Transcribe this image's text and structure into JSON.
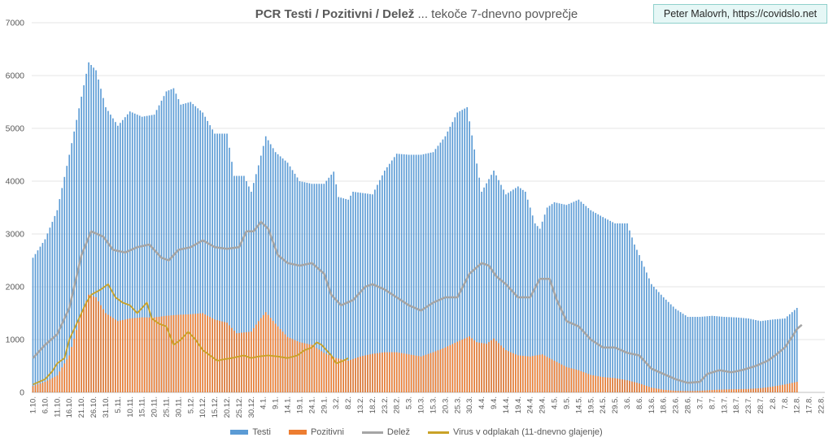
{
  "chart_data": {
    "type": "bar",
    "title_bold": "PCR Testi / Pozitivni / Delež",
    "title_rest": " ... tekoče 7-dnevno povprečje",
    "credit": "Peter Malovrh, https://covidslo.net",
    "ylim": [
      0,
      7000
    ],
    "y_ticks": [
      0,
      1000,
      2000,
      3000,
      4000,
      5000,
      6000,
      7000
    ],
    "x_start": "2020-10-01",
    "x_end": "2021-08-24",
    "x_tick_labels": [
      "1.10.",
      "6.10.",
      "11.10.",
      "16.10.",
      "21.10.",
      "26.10.",
      "31.10.",
      "5.11.",
      "10.11.",
      "15.11.",
      "20.11.",
      "25.11.",
      "30.11.",
      "5.12.",
      "10.12.",
      "15.12.",
      "20.12.",
      "25.12.",
      "30.12.",
      "4.1.",
      "9.1.",
      "14.1.",
      "19.1.",
      "24.1.",
      "29.1.",
      "3.2.",
      "8.2.",
      "13.2.",
      "18.2.",
      "23.2.",
      "28.2.",
      "5.3.",
      "10.3.",
      "15.3.",
      "20.3.",
      "25.3.",
      "30.3.",
      "4.4.",
      "9.4.",
      "14.4.",
      "19.4.",
      "24.4.",
      "29.4.",
      "4.5.",
      "9.5.",
      "14.5.",
      "19.5.",
      "24.5.",
      "29.5.",
      "3.6.",
      "8.6.",
      "13.6.",
      "18.6.",
      "23.6.",
      "28.6.",
      "3.7.",
      "8.7.",
      "13.7.",
      "18.7.",
      "23.7.",
      "28.7.",
      "2.8.",
      "7.8.",
      "12.8.",
      "17.8.",
      "22.8."
    ],
    "series": [
      {
        "name": "Testi",
        "kind": "bar",
        "color": "#5b9bd5",
        "points": [
          [
            "2020-10-01",
            2550
          ],
          [
            "2020-10-06",
            2900
          ],
          [
            "2020-10-11",
            3450
          ],
          [
            "2020-10-16",
            4500
          ],
          [
            "2020-10-21",
            5600
          ],
          [
            "2020-10-24",
            6250
          ],
          [
            "2020-10-27",
            6100
          ],
          [
            "2020-10-31",
            5400
          ],
          [
            "2020-11-05",
            5050
          ],
          [
            "2020-11-10",
            5320
          ],
          [
            "2020-11-15",
            5220
          ],
          [
            "2020-11-20",
            5260
          ],
          [
            "2020-11-25",
            5700
          ],
          [
            "2020-11-28",
            5760
          ],
          [
            "2020-12-01",
            5450
          ],
          [
            "2020-12-05",
            5500
          ],
          [
            "2020-12-10",
            5300
          ],
          [
            "2020-12-15",
            4900
          ],
          [
            "2020-12-20",
            4900
          ],
          [
            "2020-12-23",
            4100
          ],
          [
            "2020-12-27",
            4100
          ],
          [
            "2020-12-30",
            3800
          ],
          [
            "2021-01-02",
            4300
          ],
          [
            "2021-01-05",
            4850
          ],
          [
            "2021-01-09",
            4550
          ],
          [
            "2021-01-14",
            4350
          ],
          [
            "2021-01-19",
            4000
          ],
          [
            "2021-01-24",
            3950
          ],
          [
            "2021-01-29",
            3950
          ],
          [
            "2021-02-02",
            4180
          ],
          [
            "2021-02-04",
            3700
          ],
          [
            "2021-02-08",
            3650
          ],
          [
            "2021-02-10",
            3800
          ],
          [
            "2021-02-18",
            3750
          ],
          [
            "2021-02-23",
            4200
          ],
          [
            "2021-02-28",
            4520
          ],
          [
            "2021-03-05",
            4500
          ],
          [
            "2021-03-10",
            4500
          ],
          [
            "2021-03-15",
            4550
          ],
          [
            "2021-03-20",
            4850
          ],
          [
            "2021-03-25",
            5300
          ],
          [
            "2021-03-29",
            5400
          ],
          [
            "2021-04-01",
            4600
          ],
          [
            "2021-04-04",
            3800
          ],
          [
            "2021-04-09",
            4200
          ],
          [
            "2021-04-14",
            3750
          ],
          [
            "2021-04-19",
            3900
          ],
          [
            "2021-04-22",
            3800
          ],
          [
            "2021-04-26",
            3200
          ],
          [
            "2021-04-28",
            3100
          ],
          [
            "2021-05-01",
            3500
          ],
          [
            "2021-05-04",
            3600
          ],
          [
            "2021-05-09",
            3550
          ],
          [
            "2021-05-14",
            3650
          ],
          [
            "2021-05-19",
            3450
          ],
          [
            "2021-05-24",
            3320
          ],
          [
            "2021-05-29",
            3200
          ],
          [
            "2021-06-03",
            3200
          ],
          [
            "2021-06-06",
            2800
          ],
          [
            "2021-06-08",
            2600
          ],
          [
            "2021-06-13",
            2050
          ],
          [
            "2021-06-18",
            1800
          ],
          [
            "2021-06-23",
            1580
          ],
          [
            "2021-06-28",
            1430
          ],
          [
            "2021-07-03",
            1430
          ],
          [
            "2021-07-08",
            1450
          ],
          [
            "2021-07-13",
            1430
          ],
          [
            "2021-07-18",
            1420
          ],
          [
            "2021-07-23",
            1400
          ],
          [
            "2021-07-28",
            1350
          ],
          [
            "2021-08-02",
            1380
          ],
          [
            "2021-08-07",
            1400
          ],
          [
            "2021-08-12",
            1600
          ]
        ]
      },
      {
        "name": "Pozitivni",
        "kind": "bar",
        "color": "#ed7d31",
        "points": [
          [
            "2020-10-01",
            120
          ],
          [
            "2020-10-06",
            200
          ],
          [
            "2020-10-11",
            320
          ],
          [
            "2020-10-16",
            700
          ],
          [
            "2020-10-21",
            1500
          ],
          [
            "2020-10-24",
            1850
          ],
          [
            "2020-10-27",
            1800
          ],
          [
            "2020-10-31",
            1500
          ],
          [
            "2020-11-05",
            1350
          ],
          [
            "2020-11-10",
            1400
          ],
          [
            "2020-11-15",
            1420
          ],
          [
            "2020-11-20",
            1420
          ],
          [
            "2020-11-25",
            1450
          ],
          [
            "2020-11-30",
            1470
          ],
          [
            "2020-12-05",
            1480
          ],
          [
            "2020-12-10",
            1500
          ],
          [
            "2020-12-15",
            1380
          ],
          [
            "2020-12-20",
            1320
          ],
          [
            "2020-12-24",
            1120
          ],
          [
            "2020-12-30",
            1150
          ],
          [
            "2021-01-02",
            1350
          ],
          [
            "2021-01-05",
            1520
          ],
          [
            "2021-01-09",
            1300
          ],
          [
            "2021-01-14",
            1050
          ],
          [
            "2021-01-19",
            950
          ],
          [
            "2021-01-24",
            900
          ],
          [
            "2021-01-29",
            750
          ],
          [
            "2021-02-03",
            650
          ],
          [
            "2021-02-08",
            600
          ],
          [
            "2021-02-13",
            680
          ],
          [
            "2021-02-18",
            730
          ],
          [
            "2021-02-23",
            760
          ],
          [
            "2021-02-28",
            760
          ],
          [
            "2021-03-05",
            720
          ],
          [
            "2021-03-10",
            680
          ],
          [
            "2021-03-15",
            760
          ],
          [
            "2021-03-20",
            850
          ],
          [
            "2021-03-25",
            960
          ],
          [
            "2021-03-30",
            1060
          ],
          [
            "2021-04-02",
            950
          ],
          [
            "2021-04-06",
            920
          ],
          [
            "2021-04-09",
            1020
          ],
          [
            "2021-04-14",
            800
          ],
          [
            "2021-04-19",
            700
          ],
          [
            "2021-04-24",
            680
          ],
          [
            "2021-04-29",
            720
          ],
          [
            "2021-05-04",
            600
          ],
          [
            "2021-05-09",
            480
          ],
          [
            "2021-05-14",
            420
          ],
          [
            "2021-05-19",
            330
          ],
          [
            "2021-05-24",
            290
          ],
          [
            "2021-05-29",
            270
          ],
          [
            "2021-06-03",
            230
          ],
          [
            "2021-06-08",
            170
          ],
          [
            "2021-06-13",
            90
          ],
          [
            "2021-06-18",
            50
          ],
          [
            "2021-06-23",
            30
          ],
          [
            "2021-06-28",
            25
          ],
          [
            "2021-07-03",
            30
          ],
          [
            "2021-07-08",
            45
          ],
          [
            "2021-07-13",
            55
          ],
          [
            "2021-07-18",
            60
          ],
          [
            "2021-07-23",
            65
          ],
          [
            "2021-07-28",
            80
          ],
          [
            "2021-08-02",
            110
          ],
          [
            "2021-08-07",
            150
          ],
          [
            "2021-08-12",
            200
          ]
        ]
      },
      {
        "name": "Delež",
        "kind": "line",
        "color": "#a5a5a5",
        "points": [
          [
            "2020-10-01",
            650
          ],
          [
            "2020-10-06",
            900
          ],
          [
            "2020-10-11",
            1100
          ],
          [
            "2020-10-16",
            1600
          ],
          [
            "2020-10-19",
            2200
          ],
          [
            "2020-10-21",
            2600
          ],
          [
            "2020-10-25",
            3050
          ],
          [
            "2020-10-30",
            2950
          ],
          [
            "2020-11-03",
            2700
          ],
          [
            "2020-11-08",
            2650
          ],
          [
            "2020-11-13",
            2750
          ],
          [
            "2020-11-18",
            2800
          ],
          [
            "2020-11-23",
            2550
          ],
          [
            "2020-11-26",
            2500
          ],
          [
            "2020-11-30",
            2700
          ],
          [
            "2020-12-05",
            2750
          ],
          [
            "2020-12-10",
            2880
          ],
          [
            "2020-12-15",
            2750
          ],
          [
            "2020-12-20",
            2720
          ],
          [
            "2020-12-25",
            2750
          ],
          [
            "2020-12-28",
            3050
          ],
          [
            "2020-12-31",
            3050
          ],
          [
            "2021-01-03",
            3230
          ],
          [
            "2021-01-06",
            3100
          ],
          [
            "2021-01-10",
            2600
          ],
          [
            "2021-01-14",
            2450
          ],
          [
            "2021-01-19",
            2400
          ],
          [
            "2021-01-24",
            2450
          ],
          [
            "2021-01-29",
            2250
          ],
          [
            "2021-02-01",
            1850
          ],
          [
            "2021-02-05",
            1650
          ],
          [
            "2021-02-10",
            1750
          ],
          [
            "2021-02-15",
            2000
          ],
          [
            "2021-02-18",
            2050
          ],
          [
            "2021-02-23",
            1950
          ],
          [
            "2021-02-28",
            1800
          ],
          [
            "2021-03-05",
            1650
          ],
          [
            "2021-03-10",
            1550
          ],
          [
            "2021-03-15",
            1700
          ],
          [
            "2021-03-20",
            1800
          ],
          [
            "2021-03-25",
            1800
          ],
          [
            "2021-03-30",
            2250
          ],
          [
            "2021-04-04",
            2450
          ],
          [
            "2021-04-07",
            2400
          ],
          [
            "2021-04-10",
            2200
          ],
          [
            "2021-04-14",
            2050
          ],
          [
            "2021-04-19",
            1800
          ],
          [
            "2021-04-24",
            1800
          ],
          [
            "2021-04-28",
            2150
          ],
          [
            "2021-05-02",
            2150
          ],
          [
            "2021-05-05",
            1750
          ],
          [
            "2021-05-09",
            1350
          ],
          [
            "2021-05-14",
            1250
          ],
          [
            "2021-05-19",
            1000
          ],
          [
            "2021-05-24",
            850
          ],
          [
            "2021-05-29",
            850
          ],
          [
            "2021-06-03",
            750
          ],
          [
            "2021-06-08",
            700
          ],
          [
            "2021-06-13",
            450
          ],
          [
            "2021-06-18",
            350
          ],
          [
            "2021-06-23",
            250
          ],
          [
            "2021-06-28",
            180
          ],
          [
            "2021-07-03",
            200
          ],
          [
            "2021-07-06",
            350
          ],
          [
            "2021-07-11",
            420
          ],
          [
            "2021-07-16",
            380
          ],
          [
            "2021-07-21",
            430
          ],
          [
            "2021-07-26",
            500
          ],
          [
            "2021-07-31",
            600
          ],
          [
            "2021-08-03",
            700
          ],
          [
            "2021-08-07",
            850
          ],
          [
            "2021-08-10",
            1050
          ],
          [
            "2021-08-12",
            1200
          ],
          [
            "2021-08-14",
            1280
          ]
        ]
      },
      {
        "name": "Virus v odplakah (11-dnevno glajenje)",
        "kind": "line",
        "color": "#c9a227",
        "points": [
          [
            "2020-10-01",
            150
          ],
          [
            "2020-10-06",
            250
          ],
          [
            "2020-10-09",
            400
          ],
          [
            "2020-10-11",
            550
          ],
          [
            "2020-10-14",
            650
          ],
          [
            "2020-10-16",
            1000
          ],
          [
            "2020-10-18",
            1200
          ],
          [
            "2020-10-21",
            1500
          ],
          [
            "2020-10-23",
            1700
          ],
          [
            "2020-10-25",
            1850
          ],
          [
            "2020-10-29",
            1950
          ],
          [
            "2020-11-01",
            2050
          ],
          [
            "2020-11-04",
            1800
          ],
          [
            "2020-11-07",
            1700
          ],
          [
            "2020-11-10",
            1650
          ],
          [
            "2020-11-13",
            1500
          ],
          [
            "2020-11-15",
            1600
          ],
          [
            "2020-11-17",
            1700
          ],
          [
            "2020-11-19",
            1400
          ],
          [
            "2020-11-22",
            1300
          ],
          [
            "2020-11-25",
            1250
          ],
          [
            "2020-11-28",
            900
          ],
          [
            "2020-12-01",
            1000
          ],
          [
            "2020-12-04",
            1150
          ],
          [
            "2020-12-07",
            1000
          ],
          [
            "2020-12-10",
            800
          ],
          [
            "2020-12-13",
            700
          ],
          [
            "2020-12-16",
            600
          ],
          [
            "2020-12-19",
            630
          ],
          [
            "2020-12-22",
            650
          ],
          [
            "2020-12-25",
            680
          ],
          [
            "2020-12-27",
            700
          ],
          [
            "2020-12-30",
            650
          ],
          [
            "2021-01-02",
            680
          ],
          [
            "2021-01-06",
            700
          ],
          [
            "2021-01-10",
            680
          ],
          [
            "2021-01-14",
            650
          ],
          [
            "2021-01-18",
            700
          ],
          [
            "2021-01-21",
            800
          ],
          [
            "2021-01-24",
            850
          ],
          [
            "2021-01-26",
            950
          ],
          [
            "2021-01-28",
            900
          ],
          [
            "2021-02-01",
            700
          ],
          [
            "2021-02-03",
            550
          ],
          [
            "2021-02-06",
            600
          ],
          [
            "2021-02-08",
            650
          ]
        ]
      }
    ]
  }
}
